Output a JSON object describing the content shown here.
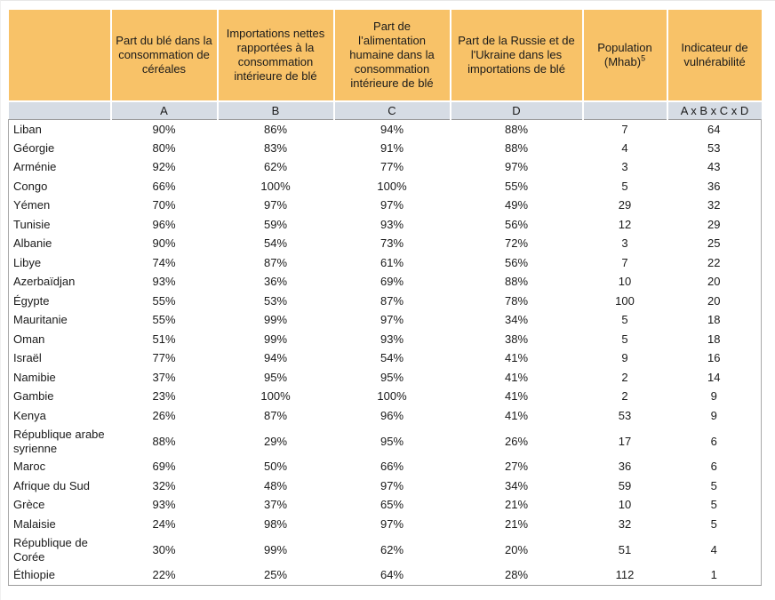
{
  "colors": {
    "header_bg": "#F8C268",
    "letter_row_bg": "#D6DCE4",
    "table_border": "#999999",
    "text": "#1A1A1A",
    "separator": "#FFFFFF"
  },
  "table": {
    "columns": [
      {
        "header": "",
        "letter": ""
      },
      {
        "header": "Part du blé dans la consommation de céréales",
        "letter": "A"
      },
      {
        "header": "Importations nettes rapportées à la consommation intérieure de blé",
        "letter": "B"
      },
      {
        "header": "Part de l’alimentation humaine dans la consommation intérieure de blé",
        "letter": "C"
      },
      {
        "header": "Part de la Russie et de l'Ukraine dans les importations de blé",
        "letter": "D"
      },
      {
        "header": "Population (Mhab)",
        "header_sup": "5",
        "letter": ""
      },
      {
        "header": "Indicateur de vulnérabilité",
        "letter": "A x B x C x D"
      }
    ],
    "rows": [
      {
        "country": "Liban",
        "a": "90%",
        "b": "86%",
        "c": "94%",
        "d": "88%",
        "population": "7",
        "indicator": "64"
      },
      {
        "country": "Géorgie",
        "a": "80%",
        "b": "83%",
        "c": "91%",
        "d": "88%",
        "population": "4",
        "indicator": "53"
      },
      {
        "country": "Arménie",
        "a": "92%",
        "b": "62%",
        "c": "77%",
        "d": "97%",
        "population": "3",
        "indicator": "43"
      },
      {
        "country": "Congo",
        "a": "66%",
        "b": "100%",
        "c": "100%",
        "d": "55%",
        "population": "5",
        "indicator": "36"
      },
      {
        "country": "Yémen",
        "a": "70%",
        "b": "97%",
        "c": "97%",
        "d": "49%",
        "population": "29",
        "indicator": "32"
      },
      {
        "country": "Tunisie",
        "a": "96%",
        "b": "59%",
        "c": "93%",
        "d": "56%",
        "population": "12",
        "indicator": "29"
      },
      {
        "country": "Albanie",
        "a": "90%",
        "b": "54%",
        "c": "73%",
        "d": "72%",
        "population": "3",
        "indicator": "25"
      },
      {
        "country": "Libye",
        "a": "74%",
        "b": "87%",
        "c": "61%",
        "d": "56%",
        "population": "7",
        "indicator": "22"
      },
      {
        "country": "Azerbaïdjan",
        "a": "93%",
        "b": "36%",
        "c": "69%",
        "d": "88%",
        "population": "10",
        "indicator": "20"
      },
      {
        "country": "Égypte",
        "a": "55%",
        "b": "53%",
        "c": "87%",
        "d": "78%",
        "population": "100",
        "indicator": "20"
      },
      {
        "country": "Mauritanie",
        "a": "55%",
        "b": "99%",
        "c": "97%",
        "d": "34%",
        "population": "5",
        "indicator": "18"
      },
      {
        "country": "Oman",
        "a": "51%",
        "b": "99%",
        "c": "93%",
        "d": "38%",
        "population": "5",
        "indicator": "18"
      },
      {
        "country": "Israël",
        "a": "77%",
        "b": "94%",
        "c": "54%",
        "d": "41%",
        "population": "9",
        "indicator": "16"
      },
      {
        "country": "Namibie",
        "a": "37%",
        "b": "95%",
        "c": "95%",
        "d": "41%",
        "population": "2",
        "indicator": "14"
      },
      {
        "country": "Gambie",
        "a": "23%",
        "b": "100%",
        "c": "100%",
        "d": "41%",
        "population": "2",
        "indicator": "9"
      },
      {
        "country": "Kenya",
        "a": "26%",
        "b": "87%",
        "c": "96%",
        "d": "41%",
        "population": "53",
        "indicator": "9"
      },
      {
        "country": "République arabe syrienne",
        "a": "88%",
        "b": "29%",
        "c": "95%",
        "d": "26%",
        "population": "17",
        "indicator": "6"
      },
      {
        "country": "Maroc",
        "a": "69%",
        "b": "50%",
        "c": "66%",
        "d": "27%",
        "population": "36",
        "indicator": "6"
      },
      {
        "country": "Afrique du Sud",
        "a": "32%",
        "b": "48%",
        "c": "97%",
        "d": "34%",
        "population": "59",
        "indicator": "5"
      },
      {
        "country": "Grèce",
        "a": "93%",
        "b": "37%",
        "c": "65%",
        "d": "21%",
        "population": "10",
        "indicator": "5"
      },
      {
        "country": "Malaisie",
        "a": "24%",
        "b": "98%",
        "c": "97%",
        "d": "21%",
        "population": "32",
        "indicator": "5"
      },
      {
        "country": "République de Corée",
        "a": "30%",
        "b": "99%",
        "c": "62%",
        "d": "20%",
        "population": "51",
        "indicator": "4"
      },
      {
        "country": "Éthiopie",
        "a": "22%",
        "b": "25%",
        "c": "64%",
        "d": "28%",
        "population": "112",
        "indicator": "1"
      }
    ]
  }
}
